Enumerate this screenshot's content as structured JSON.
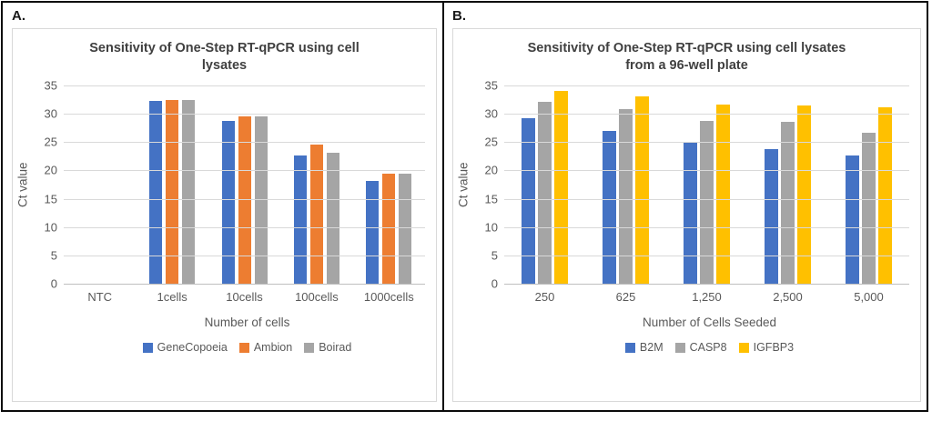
{
  "panels": [
    {
      "label": "A.",
      "title_lines": [
        "Sensitivity of One-Step RT-qPCR using cell",
        "lysates"
      ]
    },
    {
      "label": "B.",
      "title_lines": [
        "Sensitivity of One-Step RT-qPCR using cell lysates",
        "from a 96-well plate"
      ]
    }
  ],
  "colors": {
    "blue": "#4472C4",
    "orange": "#ED7D31",
    "gray": "#A5A5A5",
    "yellow": "#FFC000",
    "gridline": "#D9D9D9",
    "title_text": "#404040",
    "axis_text": "#595959"
  },
  "chart_data": [
    {
      "type": "bar",
      "title": "Sensitivity of One-Step RT-qPCR using cell lysates",
      "categories": [
        "NTC",
        "1cells",
        "10cells",
        "100cells",
        "1000cells"
      ],
      "series": [
        {
          "name": "GeneCopoeia",
          "color": "#4472C4",
          "values": [
            null,
            32.2,
            28.8,
            22.7,
            18.1
          ]
        },
        {
          "name": "Ambion",
          "color": "#ED7D31",
          "values": [
            null,
            32.5,
            29.6,
            24.5,
            19.5
          ]
        },
        {
          "name": "Boirad",
          "color": "#A5A5A5",
          "values": [
            null,
            32.5,
            29.5,
            23.2,
            19.5
          ]
        }
      ],
      "xlabel": "Number of cells",
      "ylabel": "Ct value",
      "ylim": [
        0,
        35
      ],
      "ytick_step": 5,
      "grid": true,
      "legend_position": "bottom"
    },
    {
      "type": "bar",
      "title": "Sensitivity of One-Step RT-qPCR using cell lysates from a 96-well plate",
      "categories": [
        "250",
        "625",
        "1,250",
        "2,500",
        "5,000"
      ],
      "series": [
        {
          "name": "B2M",
          "color": "#4472C4",
          "values": [
            29.3,
            26.9,
            25.1,
            23.7,
            22.6
          ]
        },
        {
          "name": "CASP8",
          "color": "#A5A5A5",
          "values": [
            32.1,
            30.9,
            28.8,
            28.6,
            26.7
          ]
        },
        {
          "name": "IGFBP3",
          "color": "#FFC000",
          "values": [
            34.0,
            33.0,
            31.7,
            31.5,
            31.2
          ]
        }
      ],
      "xlabel": "Number of Cells Seeded",
      "ylabel": "Ct value",
      "ylim": [
        0,
        35
      ],
      "ytick_step": 5,
      "grid": true,
      "legend_position": "bottom"
    }
  ]
}
